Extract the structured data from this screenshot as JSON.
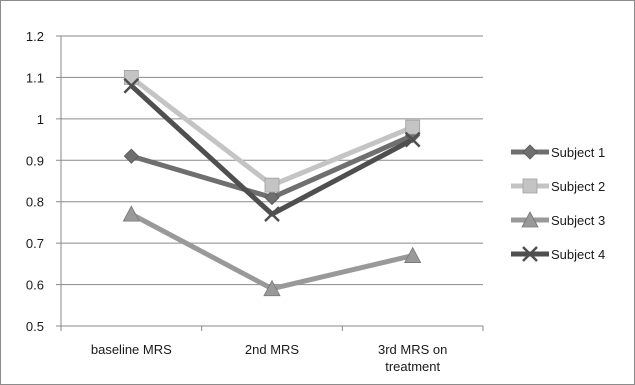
{
  "chart_data": {
    "type": "line",
    "categories": [
      "baseline MRS",
      "2nd MRS",
      "3rd MRS on treatment"
    ],
    "category_lines": [
      [
        "baseline MRS"
      ],
      [
        "2nd MRS"
      ],
      [
        "3rd MRS on",
        "treatment"
      ]
    ],
    "ylim": [
      0.5,
      1.2
    ],
    "yticks": [
      "0.5",
      "0.6",
      "0.7",
      "0.8",
      "0.9",
      "1",
      "1.1",
      "1.2"
    ],
    "ytick_values": [
      0.5,
      0.6,
      0.7,
      0.8,
      0.9,
      1.0,
      1.1,
      1.2
    ],
    "grid": "horizontal",
    "legend_position": "right",
    "series": [
      {
        "name": "Subject 1",
        "values": [
          0.91,
          0.81,
          0.96
        ],
        "color": "#6f6f6f",
        "marker": "diamond"
      },
      {
        "name": "Subject 2",
        "values": [
          1.1,
          0.84,
          0.98
        ],
        "color": "#c4c4c4",
        "marker": "square"
      },
      {
        "name": "Subject 3",
        "values": [
          0.77,
          0.59,
          0.67
        ],
        "color": "#999999",
        "marker": "triangle"
      },
      {
        "name": "Subject 4",
        "values": [
          1.08,
          0.77,
          0.95
        ],
        "color": "#4f4f4f",
        "marker": "x"
      }
    ]
  }
}
